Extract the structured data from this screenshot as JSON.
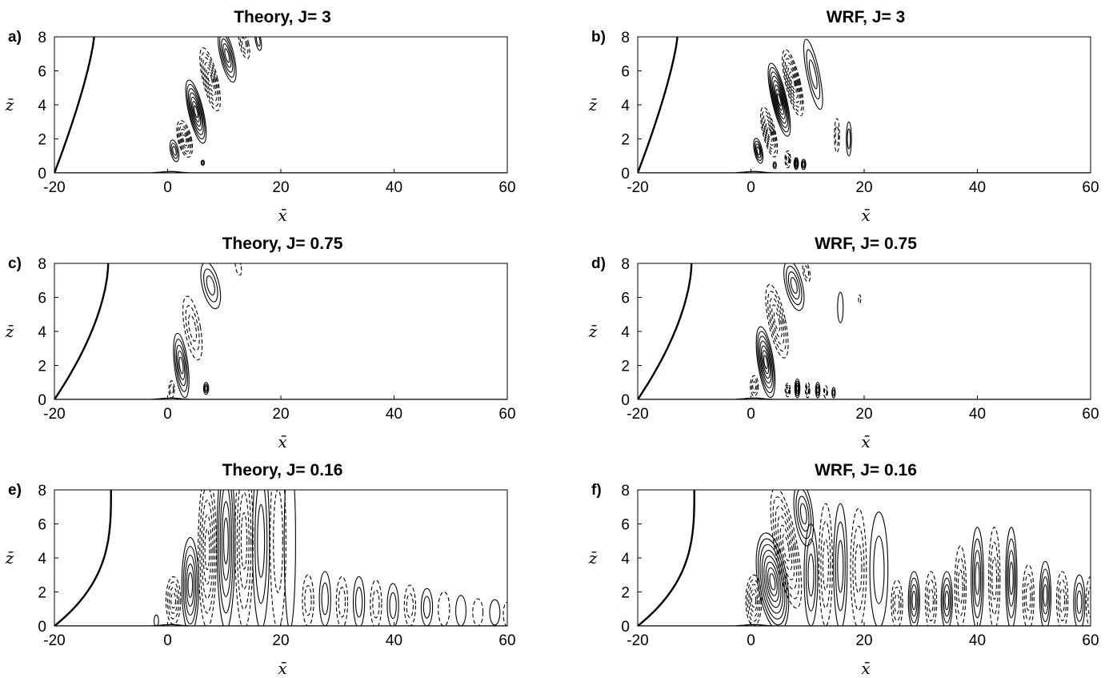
{
  "chart_data": [
    {
      "id": "a",
      "panel_label": "a)",
      "title": "Theory, J= 3",
      "type": "contour",
      "xlabel": "x̄",
      "ylabel": "z̄",
      "xlim": [
        -20,
        60
      ],
      "ylim": [
        0,
        8
      ],
      "xticks": [
        -20,
        0,
        20,
        40,
        60
      ],
      "yticks": [
        0,
        2,
        4,
        6,
        8
      ],
      "boundary_curve": {
        "x_bottom": -20,
        "x_top": -13,
        "shape": 1.3
      },
      "lobes": [
        {
          "x": 1.2,
          "z": 1.3,
          "w": 0.7,
          "h": 0.65,
          "tilt": 0.35,
          "sign": 1,
          "n": 3
        },
        {
          "x": 3.0,
          "z": 2.0,
          "w": 1.2,
          "h": 1.1,
          "tilt": 0.4,
          "sign": -1,
          "n": 6
        },
        {
          "x": 5.0,
          "z": 3.6,
          "w": 1.3,
          "h": 1.9,
          "tilt": 0.4,
          "sign": 1,
          "n": 7
        },
        {
          "x": 7.5,
          "z": 5.5,
          "w": 1.3,
          "h": 1.9,
          "tilt": 0.4,
          "sign": -1,
          "n": 6
        },
        {
          "x": 10.5,
          "z": 6.9,
          "w": 1.2,
          "h": 1.6,
          "tilt": 0.4,
          "sign": 1,
          "n": 5
        },
        {
          "x": 13.5,
          "z": 7.6,
          "w": 0.8,
          "h": 0.9,
          "tilt": 0.4,
          "sign": -1,
          "n": 3
        },
        {
          "x": 16.0,
          "z": 7.8,
          "w": 0.5,
          "h": 0.6,
          "tilt": 0.3,
          "sign": 1,
          "n": 2
        },
        {
          "x": 6.2,
          "z": 0.6,
          "w": 0.3,
          "h": 0.15,
          "tilt": 0,
          "sign": 1,
          "n": 2
        }
      ]
    },
    {
      "id": "b",
      "panel_label": "b)",
      "title": "WRF, J= 3",
      "type": "contour",
      "xlabel": "x̄",
      "ylabel": "z̄",
      "xlim": [
        -20,
        60
      ],
      "ylim": [
        0,
        8
      ],
      "xticks": [
        -20,
        0,
        20,
        40,
        60
      ],
      "yticks": [
        0,
        2,
        4,
        6,
        8
      ],
      "boundary_curve": {
        "x_bottom": -20,
        "x_top": -13,
        "shape": 1.3
      },
      "lobes": [
        {
          "x": 1.3,
          "z": 1.3,
          "w": 0.7,
          "h": 0.75,
          "tilt": 0.35,
          "sign": 1,
          "n": 4
        },
        {
          "x": 3.2,
          "z": 2.4,
          "w": 1.1,
          "h": 1.5,
          "tilt": 0.4,
          "sign": -1,
          "n": 6
        },
        {
          "x": 5.0,
          "z": 4.3,
          "w": 1.3,
          "h": 2.2,
          "tilt": 0.4,
          "sign": 1,
          "n": 8
        },
        {
          "x": 7.4,
          "z": 5.3,
          "w": 1.3,
          "h": 2.0,
          "tilt": 0.4,
          "sign": -1,
          "n": 7
        },
        {
          "x": 11.0,
          "z": 5.8,
          "w": 1.1,
          "h": 2.1,
          "tilt": 0.35,
          "sign": 1,
          "n": 3
        },
        {
          "x": 15.2,
          "z": 2.2,
          "w": 0.45,
          "h": 1.0,
          "tilt": 0,
          "sign": -1,
          "n": 2
        },
        {
          "x": 17.3,
          "z": 2.0,
          "w": 0.45,
          "h": 1.0,
          "tilt": 0,
          "sign": 1,
          "n": 2
        },
        {
          "x": 6.5,
          "z": 0.8,
          "w": 0.5,
          "h": 0.5,
          "tilt": 0,
          "sign": -1,
          "n": 3
        },
        {
          "x": 8.0,
          "z": 0.55,
          "w": 0.4,
          "h": 0.35,
          "tilt": 0,
          "sign": 1,
          "n": 4
        },
        {
          "x": 9.3,
          "z": 0.5,
          "w": 0.4,
          "h": 0.3,
          "tilt": 0,
          "sign": 1,
          "n": 3
        },
        {
          "x": 4.2,
          "z": 0.45,
          "w": 0.3,
          "h": 0.2,
          "tilt": 0,
          "sign": 1,
          "n": 2
        }
      ]
    },
    {
      "id": "c",
      "panel_label": "c)",
      "title": "Theory, J= 0.75",
      "type": "contour",
      "xlabel": "x̄",
      "ylabel": "z̄",
      "xlim": [
        -20,
        60
      ],
      "ylim": [
        0,
        8
      ],
      "xticks": [
        -20,
        0,
        20,
        40,
        60
      ],
      "yticks": [
        0,
        2,
        4,
        6,
        8
      ],
      "boundary_curve": {
        "x_bottom": -20,
        "x_top": -10.5,
        "shape": 1.7
      },
      "lobes": [
        {
          "x": 0.7,
          "z": 0.6,
          "w": 0.5,
          "h": 0.5,
          "tilt": 0,
          "sign": -1,
          "n": 2
        },
        {
          "x": 2.4,
          "z": 2.0,
          "w": 1.2,
          "h": 1.9,
          "tilt": 0.2,
          "sign": 1,
          "n": 5
        },
        {
          "x": 4.4,
          "z": 4.2,
          "w": 1.4,
          "h": 1.9,
          "tilt": 0.3,
          "sign": -1,
          "n": 3
        },
        {
          "x": 7.6,
          "z": 6.7,
          "w": 1.5,
          "h": 1.4,
          "tilt": 0.4,
          "sign": 1,
          "n": 3
        },
        {
          "x": 6.8,
          "z": 0.65,
          "w": 0.45,
          "h": 0.35,
          "tilt": 0,
          "sign": 1,
          "n": 3
        },
        {
          "x": 12.5,
          "z": 7.8,
          "w": 0.5,
          "h": 0.5,
          "tilt": 0.3,
          "sign": -1,
          "n": 1
        }
      ]
    },
    {
      "id": "d",
      "panel_label": "d)",
      "title": "WRF, J= 0.75",
      "type": "contour",
      "xlabel": "x̄",
      "ylabel": "z̄",
      "xlim": [
        -20,
        60
      ],
      "ylim": [
        0,
        8
      ],
      "xticks": [
        -20,
        0,
        20,
        40,
        60
      ],
      "yticks": [
        0,
        2,
        4,
        6,
        8
      ],
      "boundary_curve": {
        "x_bottom": -20,
        "x_top": -10.5,
        "shape": 1.7
      },
      "lobes": [
        {
          "x": 0.6,
          "z": 0.8,
          "w": 0.7,
          "h": 0.6,
          "tilt": 0,
          "sign": -1,
          "n": 3
        },
        {
          "x": 2.6,
          "z": 2.2,
          "w": 1.4,
          "h": 2.1,
          "tilt": 0.25,
          "sign": 1,
          "n": 7
        },
        {
          "x": 4.6,
          "z": 4.6,
          "w": 1.5,
          "h": 2.2,
          "tilt": 0.35,
          "sign": -1,
          "n": 5
        },
        {
          "x": 7.6,
          "z": 6.7,
          "w": 1.5,
          "h": 1.5,
          "tilt": 0.4,
          "sign": 1,
          "n": 4
        },
        {
          "x": 9.8,
          "z": 7.5,
          "w": 0.6,
          "h": 0.6,
          "tilt": 0.3,
          "sign": -1,
          "n": 2
        },
        {
          "x": 15.8,
          "z": 5.4,
          "w": 0.5,
          "h": 0.9,
          "tilt": 0,
          "sign": 1,
          "n": 1
        },
        {
          "x": 19.2,
          "z": 5.9,
          "w": 0.2,
          "h": 0.25,
          "tilt": 0,
          "sign": -1,
          "n": 1
        },
        {
          "x": 6.5,
          "z": 0.55,
          "w": 0.45,
          "h": 0.4,
          "tilt": 0,
          "sign": -1,
          "n": 3
        },
        {
          "x": 8.2,
          "z": 0.65,
          "w": 0.45,
          "h": 0.55,
          "tilt": 0,
          "sign": 1,
          "n": 4
        },
        {
          "x": 10.0,
          "z": 0.55,
          "w": 0.4,
          "h": 0.45,
          "tilt": 0,
          "sign": -1,
          "n": 3
        },
        {
          "x": 11.8,
          "z": 0.55,
          "w": 0.4,
          "h": 0.45,
          "tilt": 0,
          "sign": 1,
          "n": 3
        },
        {
          "x": 13.2,
          "z": 0.45,
          "w": 0.35,
          "h": 0.35,
          "tilt": 0,
          "sign": -1,
          "n": 2
        },
        {
          "x": 14.6,
          "z": 0.4,
          "w": 0.3,
          "h": 0.3,
          "tilt": 0,
          "sign": 1,
          "n": 2
        }
      ]
    },
    {
      "id": "e",
      "panel_label": "e)",
      "title": "Theory, J= 0.16",
      "type": "contour",
      "xlabel": "x̄",
      "ylabel": "z̄",
      "xlim": [
        -20,
        60
      ],
      "ylim": [
        0,
        8
      ],
      "xticks": [
        -20,
        0,
        20,
        40,
        60
      ],
      "yticks": [
        0,
        2,
        4,
        6,
        8
      ],
      "boundary_curve": {
        "x_bottom": -20,
        "x_top": -10,
        "shape": 3.0
      },
      "lobes": [
        {
          "x": -2.0,
          "z": 0.3,
          "w": 0.4,
          "h": 0.35,
          "tilt": 0,
          "sign": 1,
          "n": 1
        },
        {
          "x": 1.0,
          "z": 1.5,
          "w": 1.3,
          "h": 1.4,
          "tilt": 0,
          "sign": -1,
          "n": 4
        },
        {
          "x": 4.0,
          "z": 2.4,
          "w": 1.5,
          "h": 2.8,
          "tilt": 0,
          "sign": 1,
          "n": 5
        },
        {
          "x": 7.0,
          "z": 4.5,
          "w": 1.6,
          "h": 4.6,
          "tilt": 0,
          "sign": -1,
          "n": 5
        },
        {
          "x": 10.3,
          "z": 5.0,
          "w": 1.6,
          "h": 5.2,
          "tilt": 0,
          "sign": 1,
          "n": 5
        },
        {
          "x": 13.5,
          "z": 5.0,
          "w": 1.6,
          "h": 5.2,
          "tilt": 0,
          "sign": -1,
          "n": 4
        },
        {
          "x": 16.5,
          "z": 5.0,
          "w": 1.5,
          "h": 5.2,
          "tilt": 0,
          "sign": 1,
          "n": 3
        },
        {
          "x": 19.5,
          "z": 5.0,
          "w": 1.4,
          "h": 5.2,
          "tilt": 0,
          "sign": -1,
          "n": 2
        },
        {
          "x": 21.6,
          "z": 5.0,
          "w": 1.0,
          "h": 5.2,
          "tilt": 0,
          "sign": 1,
          "n": 1
        },
        {
          "x": 24.8,
          "z": 1.5,
          "w": 1.0,
          "h": 1.5,
          "tilt": 0,
          "sign": -1,
          "n": 2
        },
        {
          "x": 27.8,
          "z": 1.6,
          "w": 1.0,
          "h": 1.6,
          "tilt": 0,
          "sign": 1,
          "n": 2
        },
        {
          "x": 30.8,
          "z": 1.4,
          "w": 1.0,
          "h": 1.5,
          "tilt": 0,
          "sign": -1,
          "n": 2
        },
        {
          "x": 33.8,
          "z": 1.4,
          "w": 1.0,
          "h": 1.5,
          "tilt": 0,
          "sign": 1,
          "n": 2
        },
        {
          "x": 36.8,
          "z": 1.3,
          "w": 1.0,
          "h": 1.4,
          "tilt": 0,
          "sign": -1,
          "n": 2
        },
        {
          "x": 39.8,
          "z": 1.2,
          "w": 1.0,
          "h": 1.3,
          "tilt": 0,
          "sign": 1,
          "n": 2
        },
        {
          "x": 42.8,
          "z": 1.2,
          "w": 1.0,
          "h": 1.2,
          "tilt": 0,
          "sign": -1,
          "n": 2
        },
        {
          "x": 45.8,
          "z": 1.1,
          "w": 1.0,
          "h": 1.1,
          "tilt": 0,
          "sign": 1,
          "n": 2
        },
        {
          "x": 48.8,
          "z": 1.0,
          "w": 1.0,
          "h": 1.0,
          "tilt": 0,
          "sign": -1,
          "n": 1
        },
        {
          "x": 51.8,
          "z": 0.9,
          "w": 0.9,
          "h": 0.9,
          "tilt": 0,
          "sign": 1,
          "n": 1
        },
        {
          "x": 54.8,
          "z": 0.8,
          "w": 0.9,
          "h": 0.8,
          "tilt": 0,
          "sign": -1,
          "n": 1
        },
        {
          "x": 57.8,
          "z": 0.8,
          "w": 0.9,
          "h": 0.75,
          "tilt": 0,
          "sign": 1,
          "n": 1
        },
        {
          "x": 60.0,
          "z": 0.7,
          "w": 0.7,
          "h": 0.7,
          "tilt": 0,
          "sign": -1,
          "n": 1
        }
      ]
    },
    {
      "id": "f",
      "panel_label": "f)",
      "title": "WRF, J= 0.16",
      "type": "contour",
      "xlabel": "x̄",
      "ylabel": "z̄",
      "xlim": [
        -20,
        60
      ],
      "ylim": [
        0,
        8
      ],
      "xticks": [
        -20,
        0,
        20,
        40,
        60
      ],
      "yticks": [
        0,
        2,
        4,
        6,
        8
      ],
      "boundary_curve": {
        "x_bottom": -20,
        "x_top": -10,
        "shape": 3.0
      },
      "lobes": [
        {
          "x": 0.5,
          "z": 1.5,
          "w": 1.4,
          "h": 1.5,
          "tilt": 0,
          "sign": -1,
          "n": 5
        },
        {
          "x": 3.8,
          "z": 2.6,
          "w": 2.6,
          "h": 2.9,
          "tilt": 0.25,
          "sign": 1,
          "n": 8
        },
        {
          "x": 6.2,
          "z": 4.6,
          "w": 2.0,
          "h": 3.6,
          "tilt": 0.3,
          "sign": -1,
          "n": 6
        },
        {
          "x": 9.3,
          "z": 6.6,
          "w": 1.6,
          "h": 1.9,
          "tilt": 0.2,
          "sign": 1,
          "n": 4
        },
        {
          "x": 10.6,
          "z": 3.0,
          "w": 1.2,
          "h": 3.0,
          "tilt": 0,
          "sign": 1,
          "n": 3
        },
        {
          "x": 13.2,
          "z": 3.6,
          "w": 1.2,
          "h": 3.6,
          "tilt": 0,
          "sign": -1,
          "n": 3
        },
        {
          "x": 15.8,
          "z": 3.5,
          "w": 1.2,
          "h": 3.7,
          "tilt": 0,
          "sign": 1,
          "n": 3
        },
        {
          "x": 19.0,
          "z": 3.4,
          "w": 1.4,
          "h": 3.5,
          "tilt": 0,
          "sign": -1,
          "n": 3
        },
        {
          "x": 22.6,
          "z": 3.3,
          "w": 1.6,
          "h": 3.4,
          "tilt": 0,
          "sign": 1,
          "n": 2
        },
        {
          "x": 25.8,
          "z": 1.3,
          "w": 1.0,
          "h": 1.4,
          "tilt": 0,
          "sign": -1,
          "n": 3
        },
        {
          "x": 28.8,
          "z": 1.5,
          "w": 1.0,
          "h": 1.7,
          "tilt": 0,
          "sign": 1,
          "n": 4
        },
        {
          "x": 31.8,
          "z": 1.5,
          "w": 1.0,
          "h": 1.7,
          "tilt": 0,
          "sign": -1,
          "n": 3
        },
        {
          "x": 34.6,
          "z": 1.5,
          "w": 1.0,
          "h": 1.7,
          "tilt": 0,
          "sign": 1,
          "n": 4
        },
        {
          "x": 37.0,
          "z": 2.3,
          "w": 1.0,
          "h": 2.4,
          "tilt": 0,
          "sign": -1,
          "n": 3
        },
        {
          "x": 40.0,
          "z": 2.8,
          "w": 1.1,
          "h": 3.0,
          "tilt": 0,
          "sign": 1,
          "n": 4
        },
        {
          "x": 43.0,
          "z": 2.8,
          "w": 1.0,
          "h": 3.0,
          "tilt": 0,
          "sign": -1,
          "n": 3
        },
        {
          "x": 46.0,
          "z": 2.8,
          "w": 1.0,
          "h": 3.0,
          "tilt": 0,
          "sign": 1,
          "n": 4
        },
        {
          "x": 49.0,
          "z": 1.7,
          "w": 1.0,
          "h": 1.9,
          "tilt": 0,
          "sign": -1,
          "n": 3
        },
        {
          "x": 52.0,
          "z": 1.8,
          "w": 1.0,
          "h": 2.0,
          "tilt": 0,
          "sign": 1,
          "n": 4
        },
        {
          "x": 55.0,
          "z": 1.5,
          "w": 1.0,
          "h": 1.7,
          "tilt": 0,
          "sign": -1,
          "n": 3
        },
        {
          "x": 58.0,
          "z": 1.4,
          "w": 1.0,
          "h": 1.6,
          "tilt": 0,
          "sign": 1,
          "n": 3
        },
        {
          "x": 60.0,
          "z": 1.4,
          "w": 0.8,
          "h": 1.5,
          "tilt": 0,
          "sign": -1,
          "n": 2
        }
      ]
    }
  ]
}
